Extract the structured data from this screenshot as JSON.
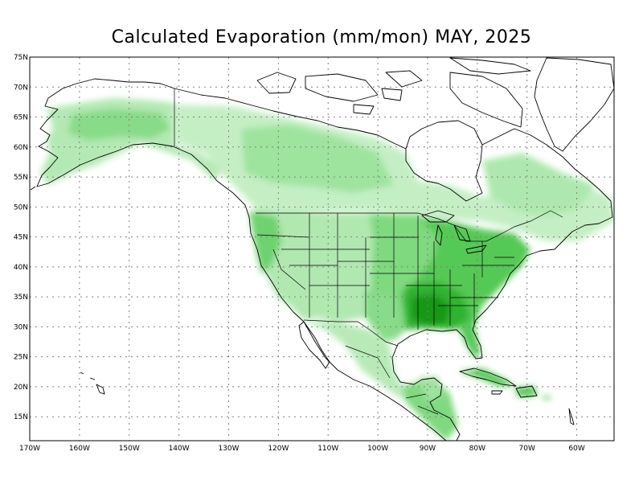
{
  "title": "Calculated Evaporation (mm/mon) MAY, 2025",
  "lat_labels": [
    "75N",
    "70N",
    "65N",
    "60N",
    "55N",
    "50N",
    "45N",
    "40N",
    "35N",
    "30N",
    "25N",
    "20N",
    "15N"
  ],
  "lon_labels": [
    "170W",
    "160W",
    "150W",
    "140W",
    "130W",
    "120W",
    "110W",
    "100W",
    "90W",
    "80W",
    "70W",
    "60W"
  ],
  "lat_values": [
    75,
    70,
    65,
    60,
    55,
    50,
    45,
    40,
    35,
    30,
    25,
    20,
    15
  ],
  "lon_values": [
    -170,
    -160,
    -150,
    -140,
    -130,
    -120,
    -110,
    -100,
    -90,
    -80,
    -70,
    -60
  ],
  "extent": {
    "lon_min": -170,
    "lon_max": -52.5,
    "lat_min": 11,
    "lat_max": 75
  },
  "colors": {
    "frame": "#000000",
    "grid": "#808080",
    "coast": "#000000",
    "scale": [
      "#e6f8e6",
      "#c4efc4",
      "#a2e5a2",
      "#7fd97f",
      "#55c955",
      "#2fb42f",
      "#129712"
    ]
  }
}
